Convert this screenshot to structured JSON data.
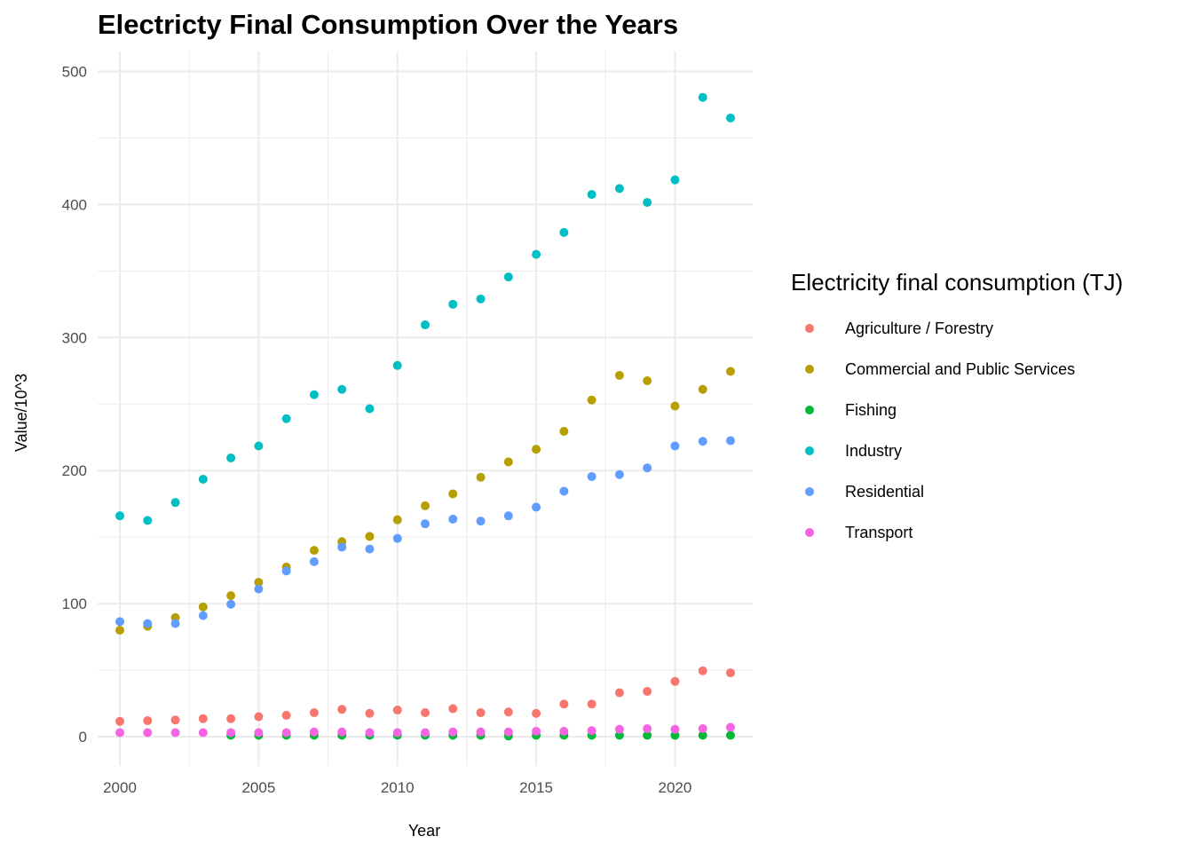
{
  "chart_data": {
    "type": "scatter",
    "title": "Electricty Final Consumption Over the Years",
    "xlabel": "Year",
    "ylabel": "Value/10^3",
    "xlim": [
      1999.2,
      2022.8
    ],
    "ylim": [
      -22,
      515
    ],
    "x_ticks": [
      2000,
      2005,
      2010,
      2015,
      2020
    ],
    "y_ticks": [
      0,
      100,
      200,
      300,
      400,
      500
    ],
    "grid": true,
    "legend": {
      "title": "Electricity final consumption (TJ)",
      "placement": "right"
    },
    "series": [
      {
        "name": "Agriculture / Forestry",
        "color": "#F8766D",
        "x": [
          2000,
          2001,
          2002,
          2003,
          2004,
          2005,
          2006,
          2007,
          2008,
          2009,
          2010,
          2011,
          2012,
          2013,
          2014,
          2015,
          2016,
          2017,
          2018,
          2019,
          2020,
          2021,
          2022
        ],
        "y": [
          11.5,
          12,
          12.5,
          13.5,
          13.5,
          15,
          16,
          18,
          20.5,
          17.5,
          20,
          18,
          21,
          18,
          18.5,
          17.5,
          24.5,
          24.5,
          33,
          34,
          41.5,
          49.5,
          48
        ]
      },
      {
        "name": "Commercial and Public Services",
        "color": "#B79F00",
        "x": [
          2000,
          2001,
          2002,
          2003,
          2004,
          2005,
          2006,
          2007,
          2008,
          2009,
          2010,
          2011,
          2012,
          2013,
          2014,
          2015,
          2016,
          2017,
          2018,
          2019,
          2020,
          2021,
          2022
        ],
        "y": [
          80,
          83,
          89.5,
          97.5,
          106,
          116,
          127.5,
          140,
          146.5,
          150.5,
          163,
          173.5,
          182.5,
          195,
          206.5,
          216,
          229.5,
          253,
          271.5,
          267.5,
          248.5,
          261,
          274.5
        ]
      },
      {
        "name": "Fishing",
        "color": "#00BA38",
        "x": [
          2004,
          2005,
          2006,
          2007,
          2008,
          2009,
          2010,
          2011,
          2012,
          2013,
          2014,
          2015,
          2016,
          2017,
          2018,
          2019,
          2020,
          2021,
          2022
        ],
        "y": [
          1,
          1,
          1,
          1,
          1,
          1,
          1,
          1,
          1,
          1,
          0.5,
          1,
          1,
          1,
          1,
          1,
          1,
          1,
          1
        ]
      },
      {
        "name": "Industry",
        "color": "#00BFC4",
        "x": [
          2000,
          2001,
          2002,
          2003,
          2004,
          2005,
          2006,
          2007,
          2008,
          2009,
          2010,
          2011,
          2012,
          2013,
          2014,
          2015,
          2016,
          2017,
          2018,
          2019,
          2020,
          2021,
          2022
        ],
        "y": [
          166,
          162.5,
          176,
          193.5,
          209.5,
          218.5,
          239,
          257,
          261,
          246.5,
          279,
          309.5,
          325,
          329,
          345.5,
          362.5,
          379,
          407.5,
          412,
          401.5,
          418.5,
          480.5,
          465
        ]
      },
      {
        "name": "Residential",
        "color": "#619CFF",
        "x": [
          2000,
          2001,
          2002,
          2003,
          2004,
          2005,
          2006,
          2007,
          2008,
          2009,
          2010,
          2011,
          2012,
          2013,
          2014,
          2015,
          2016,
          2017,
          2018,
          2019,
          2020,
          2021,
          2022
        ],
        "y": [
          86.5,
          85,
          85,
          91,
          99.5,
          111,
          124.5,
          131.5,
          142.5,
          141,
          149,
          160,
          163.5,
          162,
          166,
          172.5,
          184.5,
          195.5,
          197,
          202,
          218.5,
          222,
          222.5
        ]
      },
      {
        "name": "Transport",
        "color": "#F564E3",
        "x": [
          2000,
          2001,
          2002,
          2003,
          2004,
          2005,
          2006,
          2007,
          2008,
          2009,
          2010,
          2011,
          2012,
          2013,
          2014,
          2015,
          2016,
          2017,
          2018,
          2019,
          2020,
          2021,
          2022
        ],
        "y": [
          3,
          3,
          3,
          3,
          3,
          3,
          3,
          3.5,
          3.5,
          3,
          3,
          3,
          3.5,
          3.5,
          3.5,
          4,
          4,
          4.5,
          5.5,
          6,
          5.5,
          6,
          7
        ]
      }
    ]
  }
}
